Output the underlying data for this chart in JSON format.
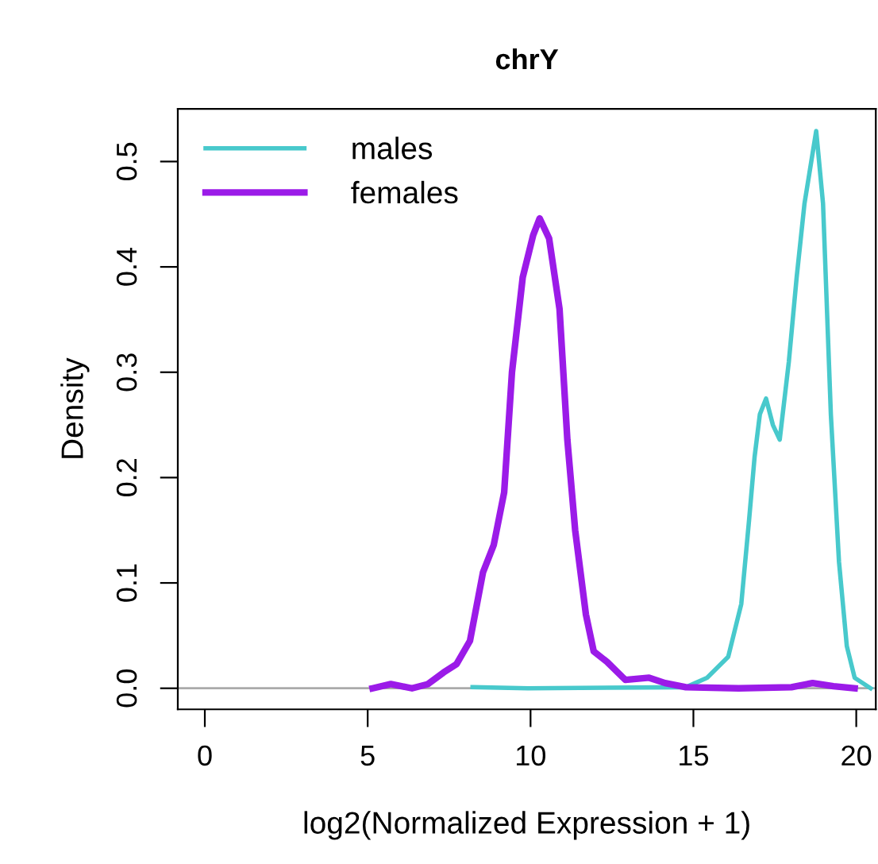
{
  "chart_data": {
    "type": "line",
    "title": "chrY",
    "xlabel": "log2(Normalized Expression + 1)",
    "ylabel": "Density",
    "xlim": [
      -0.83,
      20.6
    ],
    "ylim": [
      -0.02,
      0.55
    ],
    "xticks": [
      0,
      5,
      10,
      15,
      20
    ],
    "yticks": [
      {
        "value": 0,
        "label": "0.0"
      },
      0.1,
      0.2,
      0.3,
      0.4,
      0.5
    ],
    "grid": false,
    "legend": "top left",
    "line_style": "solid",
    "ref_lines": [
      {
        "axis": "y",
        "value": 0,
        "color": "#aaaaaa"
      }
    ],
    "series": [
      {
        "name": "males",
        "color": "#48c9cc",
        "x": [
          8.22,
          9.92,
          14.77,
          15.42,
          16.07,
          16.47,
          16.71,
          16.88,
          17.04,
          17.23,
          17.44,
          17.65,
          17.93,
          18.17,
          18.41,
          18.77,
          18.98,
          19.22,
          19.47,
          19.71,
          19.95,
          20.44
        ],
        "values": [
          0.001,
          0,
          0.001,
          0.01,
          0.03,
          0.08,
          0.16,
          0.22,
          0.26,
          0.275,
          0.25,
          0.236,
          0.31,
          0.39,
          0.46,
          0.529,
          0.46,
          0.26,
          0.12,
          0.04,
          0.01,
          0
        ]
      },
      {
        "name": "females",
        "color": "#9b1be8",
        "x": [
          5.15,
          5.71,
          6.36,
          6.85,
          7.33,
          7.73,
          8.14,
          8.54,
          8.87,
          9.19,
          9.43,
          9.76,
          10.08,
          10.28,
          10.57,
          10.89,
          11.13,
          11.37,
          11.7,
          11.94,
          12.35,
          12.91,
          13.64,
          14.13,
          14.77,
          16.39,
          18.01,
          18.66,
          19.3,
          19.95
        ],
        "values": [
          0,
          0.004,
          0,
          0.004,
          0.015,
          0.023,
          0.045,
          0.11,
          0.136,
          0.186,
          0.3,
          0.39,
          0.43,
          0.446,
          0.427,
          0.36,
          0.236,
          0.15,
          0.07,
          0.035,
          0.025,
          0.008,
          0.01,
          0.005,
          0.001,
          0,
          0.001,
          0.005,
          0.002,
          0
        ]
      }
    ]
  }
}
